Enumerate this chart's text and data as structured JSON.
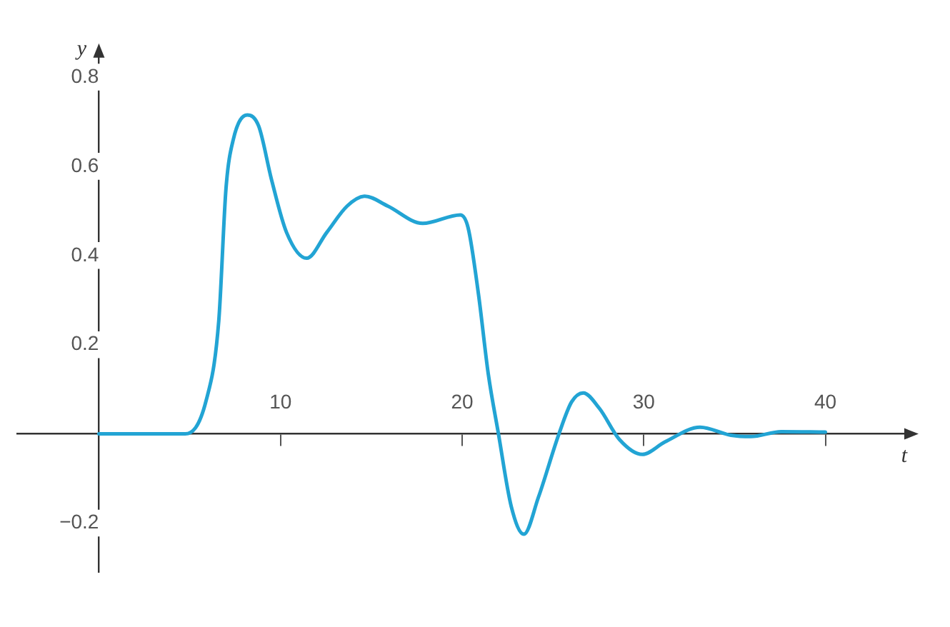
{
  "chart_data": {
    "type": "line",
    "xlabel": "t",
    "ylabel": "y",
    "xlim": [
      -4.5,
      44.5
    ],
    "ylim": [
      -0.31,
      0.85
    ],
    "xticks": [
      10,
      20,
      30,
      40
    ],
    "yticks": [
      -0.2,
      0.2,
      0.4,
      0.6,
      0.8
    ],
    "grid": false,
    "legend": false,
    "marker": "none",
    "line_style": "solid",
    "series": [
      {
        "color": "#22a4d4",
        "x": [
          0,
          4.75,
          5.9,
          6.6,
          7.0,
          7.4,
          8.17,
          8.8,
          9.5,
          10.33,
          11.44,
          12.55,
          13.67,
          14.64,
          15.9,
          17.83,
          19.9,
          20.33,
          20.9,
          21.44,
          22.0,
          22.7,
          23.4,
          24.2,
          25.33,
          26.03,
          26.67,
          27.56,
          28.67,
          29.92,
          31.17,
          33.1,
          34.8,
          35.9,
          37.56,
          40
        ],
        "values": [
          0,
          0,
          0.074,
          0.253,
          0.551,
          0.66,
          0.715,
          0.69,
          0.571,
          0.452,
          0.394,
          0.452,
          0.511,
          0.533,
          0.511,
          0.472,
          0.491,
          0.462,
          0.313,
          0.134,
          0,
          -0.162,
          -0.225,
          -0.142,
          0,
          0.072,
          0.092,
          0.057,
          -0.013,
          -0.046,
          -0.018,
          0.015,
          -0.003,
          -0.006,
          0.005,
          0.004
        ]
      }
    ]
  }
}
